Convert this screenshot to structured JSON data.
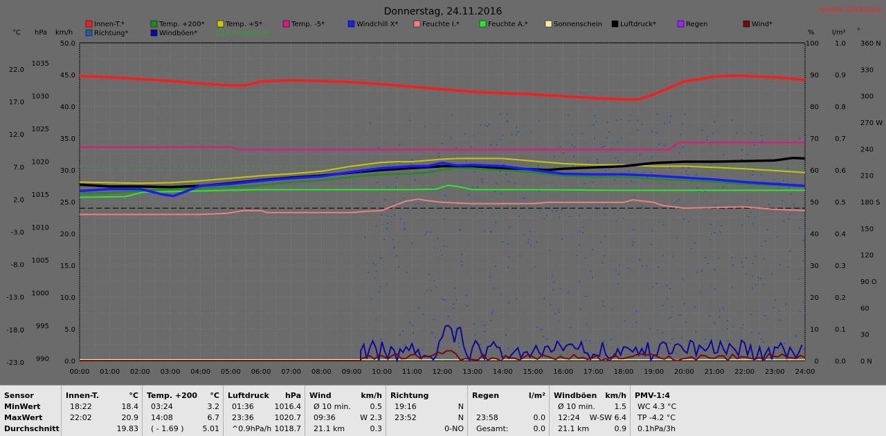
{
  "title": "Donnerstag, 24.11.2016",
  "station": "Station Göritzhain",
  "colors": {
    "innen": "#ff1a1a",
    "temp200": "#1e8c1e",
    "temp5": "#c8c800",
    "tempm5": "#e6147a",
    "windchill": "#1a1aff",
    "feuchteI": "#f08080",
    "feuchteA": "#22ee22",
    "sonne": "#f0f0a0",
    "luftdruck": "#000000",
    "regen": "#9a20ff",
    "wind": "#7a0a0a",
    "richtung": "#2060a0",
    "windboeen": "#0a0aa0",
    "monat": "#22aa22"
  },
  "unit_labels": {
    "c": "°C",
    "hpa": "hPa",
    "kmh": "km/h",
    "pct": "%",
    "lm2": "l/m²",
    "deg": "°"
  },
  "legend": [
    {
      "label": "Innen-T.*",
      "color": "#ff1a1a"
    },
    {
      "label": "Temp. +200*",
      "color": "#1e8c1e"
    },
    {
      "label": "Temp. +5*",
      "color": "#c8c800"
    },
    {
      "label": "Temp. -5*",
      "color": "#e6147a"
    },
    {
      "label": "Windchill X*",
      "color": "#1a1aff"
    },
    {
      "label": "Feuchte I.*",
      "color": "#f08080"
    },
    {
      "label": "Feuchte A.*",
      "color": "#22ee22"
    },
    {
      "label": "Sonnenschein",
      "color": "#f0f0a0"
    },
    {
      "label": "Luftdruck*",
      "color": "#000000"
    },
    {
      "label": "Regen",
      "color": "#9a20ff"
    },
    {
      "label": "Wind*",
      "color": "#7a0a0a"
    },
    {
      "label": "Richtung*",
      "color": "#2060a0"
    },
    {
      "label": "Windböen*",
      "color": "#0a0aa0"
    },
    {
      "label": "6.7 Monat-Ø",
      "color": "#22aa22"
    }
  ],
  "chart_data": {
    "type": "line",
    "title": "Donnerstag, 24.11.2016",
    "x_ticks": [
      "00:00",
      "01:00",
      "02:00",
      "03:00",
      "04:00",
      "05:00",
      "06:00",
      "07:00",
      "08:00",
      "09:00",
      "10:00",
      "11:00",
      "12:00",
      "13:00",
      "14:00",
      "15:00",
      "16:00",
      "17:00",
      "18:00",
      "19:00",
      "20:00",
      "21:00",
      "22:00",
      "23:00",
      "24:00"
    ],
    "y_ticks_c": [
      "22.0",
      "17.0",
      "12.0",
      "7.0",
      "2.0",
      "-3.0",
      "-8.0",
      "-13.0",
      "-18.0",
      "-23.0"
    ],
    "y_ticks_hpa": [
      "1035",
      "1030",
      "1025",
      "1020",
      "1015",
      "1010",
      "1005",
      "1000",
      "995",
      "990"
    ],
    "y_ticks_kmh": [
      "50.0",
      "45.0",
      "40.0",
      "35.0",
      "30.0",
      "25.0",
      "20.0",
      "15.0",
      "10.0",
      "5.0",
      "0.0"
    ],
    "y_ticks_pct": [
      "100",
      "90",
      "80",
      "70",
      "60",
      "50",
      "40",
      "30",
      "20",
      "10",
      "0"
    ],
    "y_ticks_lm2": [
      "1.0",
      "0.9",
      "0.8",
      "0.7",
      "0.6",
      "0.5",
      "0.4",
      "0.3",
      "0.2",
      "0.1",
      "0.0"
    ],
    "y_ticks_deg": [
      "360 N",
      "330",
      "300",
      "270 W",
      "240",
      "210",
      "180 S",
      "150",
      "120",
      "90 O",
      "60",
      "30",
      "0 N"
    ],
    "x_range_hours": [
      0,
      24
    ],
    "kmh_range": [
      0,
      50
    ],
    "grid": true,
    "ref_lines": [
      {
        "series": "Monat-Ø",
        "kmh": 30.6
      },
      {
        "series": "black-dashed",
        "kmh": 24.0
      }
    ],
    "series": [
      {
        "key": "innen",
        "width": 3.5,
        "x": [
          0,
          1,
          2,
          3,
          4,
          5,
          5.5,
          6,
          7,
          8,
          9,
          10,
          11,
          12,
          13,
          14,
          15,
          16,
          17,
          18,
          18.5,
          19,
          20,
          21,
          21.5,
          22,
          23,
          24
        ],
        "y": [
          44.8,
          44.6,
          44.3,
          44.0,
          43.6,
          43.3,
          43.3,
          43.9,
          44.1,
          44.0,
          43.8,
          43.5,
          43.1,
          42.7,
          42.3,
          42.1,
          41.9,
          41.6,
          41.3,
          41.1,
          41.1,
          41.9,
          43.9,
          44.7,
          44.8,
          44.8,
          44.6,
          44.2
        ]
      },
      {
        "key": "tempm5",
        "width": 2,
        "x": [
          0,
          5,
          5.3,
          10,
          15,
          18,
          19.5,
          19.8,
          24
        ],
        "y": [
          33.6,
          33.6,
          33.2,
          33.2,
          33.2,
          33.2,
          33.2,
          34.3,
          34.3
        ]
      },
      {
        "key": "feuchteA",
        "width": 2,
        "x": [
          0,
          1.5,
          2.1,
          3,
          4,
          5,
          6,
          7,
          8,
          9,
          10,
          11,
          11.8,
          12.2,
          12.5,
          13,
          14,
          15,
          18,
          24
        ],
        "y": [
          25.7,
          25.8,
          26.5,
          26.6,
          26.7,
          26.8,
          26.9,
          26.9,
          26.9,
          26.9,
          26.9,
          26.9,
          27.0,
          27.6,
          27.4,
          26.9,
          26.9,
          26.9,
          26.8,
          26.8
        ]
      },
      {
        "key": "feuchteI",
        "width": 2,
        "x": [
          0,
          3,
          4,
          4.9,
          5.4,
          6,
          6.2,
          8,
          9,
          9.5,
          10,
          10.3,
          10.8,
          11.2,
          11.5,
          12,
          13,
          15,
          15.5,
          16,
          17,
          18,
          18.3,
          19,
          19.3,
          20,
          21,
          22,
          23,
          24
        ],
        "y": [
          23.0,
          23.0,
          23.0,
          23.2,
          23.6,
          23.6,
          23.3,
          23.3,
          23.3,
          23.5,
          23.6,
          24.2,
          25.1,
          25.4,
          25.2,
          24.9,
          24.7,
          24.7,
          24.9,
          24.9,
          24.9,
          24.9,
          25.3,
          24.9,
          24.4,
          24.0,
          24.1,
          24.2,
          23.8,
          23.6
        ]
      },
      {
        "key": "temp5",
        "width": 2,
        "x": [
          0,
          1,
          2,
          3,
          4,
          5,
          6,
          7,
          8,
          9,
          10,
          10.5,
          11,
          11.5,
          12,
          12.5,
          13,
          14,
          15,
          16,
          17,
          18,
          19,
          20,
          21,
          22,
          23,
          24
        ],
        "y": [
          28.1,
          28.0,
          27.9,
          28.0,
          28.3,
          28.7,
          29.1,
          29.4,
          29.8,
          30.6,
          31.2,
          31.3,
          31.3,
          31.5,
          31.7,
          31.8,
          31.8,
          31.8,
          31.4,
          31.0,
          30.8,
          30.8,
          30.6,
          30.6,
          30.4,
          30.2,
          29.9,
          29.6
        ]
      },
      {
        "key": "temp200",
        "width": 2.5,
        "x": [
          0,
          1,
          2,
          3,
          4,
          5,
          6,
          7,
          8,
          9,
          10,
          11,
          11.5,
          12,
          12.5,
          13,
          14,
          15,
          16,
          17,
          18,
          19,
          20,
          21,
          22,
          23,
          24
        ],
        "y": [
          26.3,
          26.4,
          26.7,
          27.0,
          27.1,
          27.3,
          27.6,
          28.1,
          28.4,
          28.9,
          29.3,
          29.4,
          29.6,
          30.0,
          30.3,
          30.2,
          30.0,
          29.6,
          29.1,
          28.9,
          28.9,
          28.6,
          28.4,
          28.1,
          27.8,
          27.6,
          27.4
        ]
      },
      {
        "key": "luftdruck",
        "width": 3.5,
        "x": [
          0,
          1,
          2,
          3,
          4,
          5,
          6,
          7,
          8,
          9,
          10,
          11,
          12,
          13,
          14,
          15,
          15.5,
          16,
          17,
          18,
          19,
          20,
          21,
          22,
          23,
          23.6,
          24
        ],
        "y": [
          27.7,
          27.4,
          27.4,
          27.3,
          27.5,
          27.9,
          28.4,
          28.8,
          29.1,
          29.6,
          30.0,
          30.3,
          30.6,
          30.6,
          30.3,
          30.1,
          30.0,
          30.2,
          30.4,
          30.6,
          31.1,
          31.3,
          31.3,
          31.4,
          31.5,
          31.9,
          31.8
        ]
      },
      {
        "key": "windchill",
        "width": 3.5,
        "x": [
          0,
          1,
          2,
          2.8,
          3.1,
          3.5,
          4,
          5,
          6,
          7,
          8,
          9,
          10,
          11,
          11.5,
          12,
          12.5,
          13,
          14,
          15,
          16,
          17,
          18,
          19,
          20,
          21,
          22,
          23,
          24
        ],
        "y": [
          26.7,
          27.0,
          27.0,
          26.1,
          25.9,
          26.6,
          27.5,
          27.8,
          28.3,
          28.7,
          29.0,
          29.7,
          30.3,
          30.6,
          30.6,
          31.1,
          30.7,
          30.8,
          30.6,
          30.0,
          29.4,
          29.3,
          29.3,
          29.1,
          28.8,
          28.5,
          28.1,
          27.8,
          27.5
        ]
      }
    ],
    "stats": {
      "headers": [
        {
          "name": "Sensor",
          "unit": ""
        },
        {
          "name": "Innen-T.",
          "unit": "°C"
        },
        {
          "name": "Temp. +200",
          "unit": "°C"
        },
        {
          "name": "Luftdruck",
          "unit": "hPa"
        },
        {
          "name": "Wind",
          "unit": "km/h"
        },
        {
          "name": "Richtung",
          "unit": ""
        },
        {
          "name": "Regen",
          "unit": "l/m²"
        },
        {
          "name": "Windböen",
          "unit": "km/h"
        },
        {
          "name": "PMV-1:4",
          "unit": ""
        }
      ],
      "row_labels": [
        "MinWert",
        "MaxWert",
        "Durchschnitt"
      ],
      "innen": [
        [
          "18:22",
          "18.4"
        ],
        [
          "22:02",
          "20.9"
        ],
        [
          "",
          "19.83"
        ]
      ],
      "temp200": [
        [
          "03:24",
          "3.2"
        ],
        [
          "14:08",
          "6.7"
        ],
        [
          "( - 1.69 )",
          "5.01"
        ]
      ],
      "luftdruck": [
        [
          "01:36",
          "1016.4"
        ],
        [
          "23:36",
          "1020.7"
        ],
        [
          "^0.9hPa/h",
          "1018.7"
        ]
      ],
      "wind": [
        [
          "Ø 10 min.",
          "0.5"
        ],
        [
          "09:36",
          "W 2.3"
        ],
        [
          "21.1 km",
          "0.3"
        ]
      ],
      "richtung": [
        [
          "19:16",
          "N"
        ],
        [
          "23:52",
          "N"
        ],
        [
          "",
          "0-NO"
        ]
      ],
      "regen": [
        [
          "",
          ""
        ],
        [
          "23:58",
          "0.0"
        ],
        [
          "Gesamt:",
          "0.0"
        ]
      ],
      "windboeen": [
        [
          "Ø 10 min.",
          "1.5"
        ],
        [
          "12:24",
          "W-SW 6.4"
        ],
        [
          "21.1 km",
          "0.9"
        ]
      ],
      "pmv": [
        "WC 4.3 °C",
        "TP -4.2 °C",
        "0.1hPa/3h"
      ]
    }
  }
}
